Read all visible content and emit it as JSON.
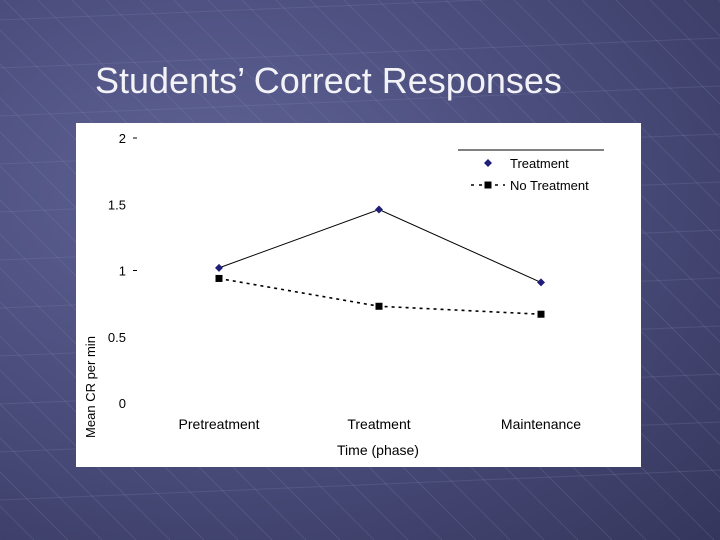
{
  "slide": {
    "title": "Students’ Correct Responses"
  },
  "chart_data": {
    "type": "line",
    "categories": [
      "Pretreatment",
      "Treatment",
      "Maintenance"
    ],
    "series": [
      {
        "name": "Treatment",
        "values": [
          1.02,
          1.46,
          0.91
        ],
        "color": "#1f1f7a",
        "marker": "diamond",
        "line_style": "solid"
      },
      {
        "name": "No Treatment",
        "values": [
          0.94,
          0.73,
          0.67
        ],
        "color": "#000000",
        "marker": "square",
        "line_style": "dashed"
      }
    ],
    "yticks": [
      {
        "value": 2,
        "label": "2"
      },
      {
        "value": 1.5,
        "label": "1.5"
      },
      {
        "value": 1,
        "label": "1"
      },
      {
        "value": 0.5,
        "label": "0.5"
      },
      {
        "value": 0,
        "label": "0"
      }
    ],
    "ylim": [
      0,
      2
    ],
    "xlabel": "Time (phase)",
    "ylabel": "Mean CR per min",
    "legend_position": "top-right",
    "grid": false
  }
}
